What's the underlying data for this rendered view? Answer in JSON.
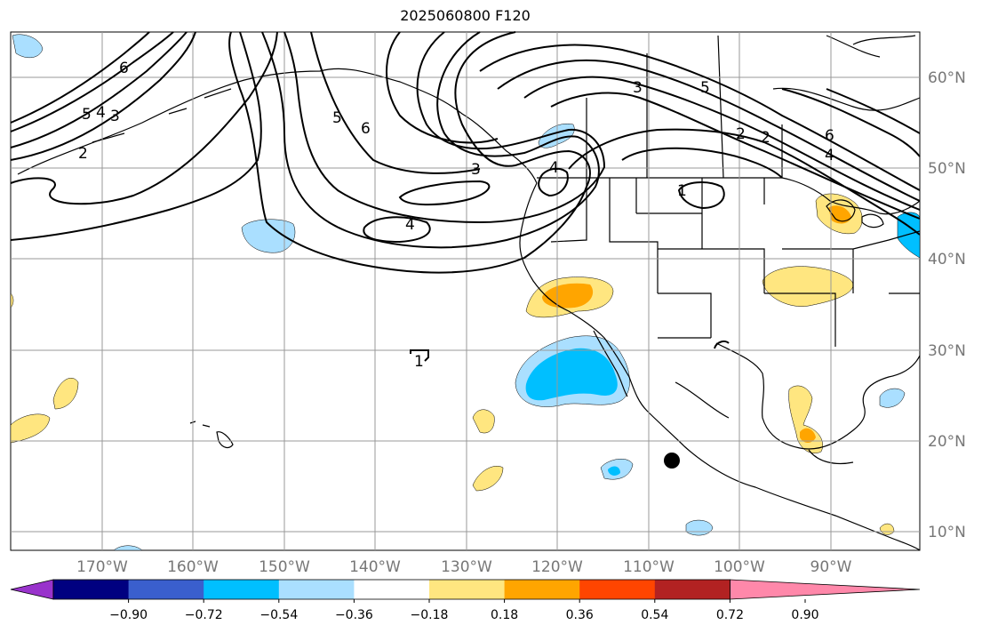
{
  "title": "2025060800 F120",
  "lon_labels": [
    "170°W",
    "160°W",
    "150°W",
    "140°W",
    "130°W",
    "120°W",
    "110°W",
    "100°W",
    "90°W"
  ],
  "lat_labels": [
    "60°N",
    "50°N",
    "40°N",
    "30°N",
    "20°N",
    "10°N"
  ],
  "colorbar": {
    "ticks": [
      "−0.90",
      "−0.72",
      "−0.54",
      "−0.36",
      "−0.18",
      "0.18",
      "0.36",
      "0.54",
      "0.72",
      "0.90"
    ],
    "colors": [
      "#9933cc",
      "#000080",
      "#3a5fcd",
      "#00bfff",
      "#aadfff",
      "#ffffff",
      "#ffe680",
      "#ffa500",
      "#ff4500",
      "#b22222",
      "#ff88aa"
    ]
  },
  "contour_labels": [
    "6",
    "5",
    "4",
    "3",
    "2",
    "5",
    "6",
    "3",
    "4",
    "4",
    "3",
    "5",
    "2",
    "6",
    "4",
    "1",
    "1",
    "2"
  ],
  "colors": {
    "land_line": "#000000",
    "grid": "#999999"
  }
}
